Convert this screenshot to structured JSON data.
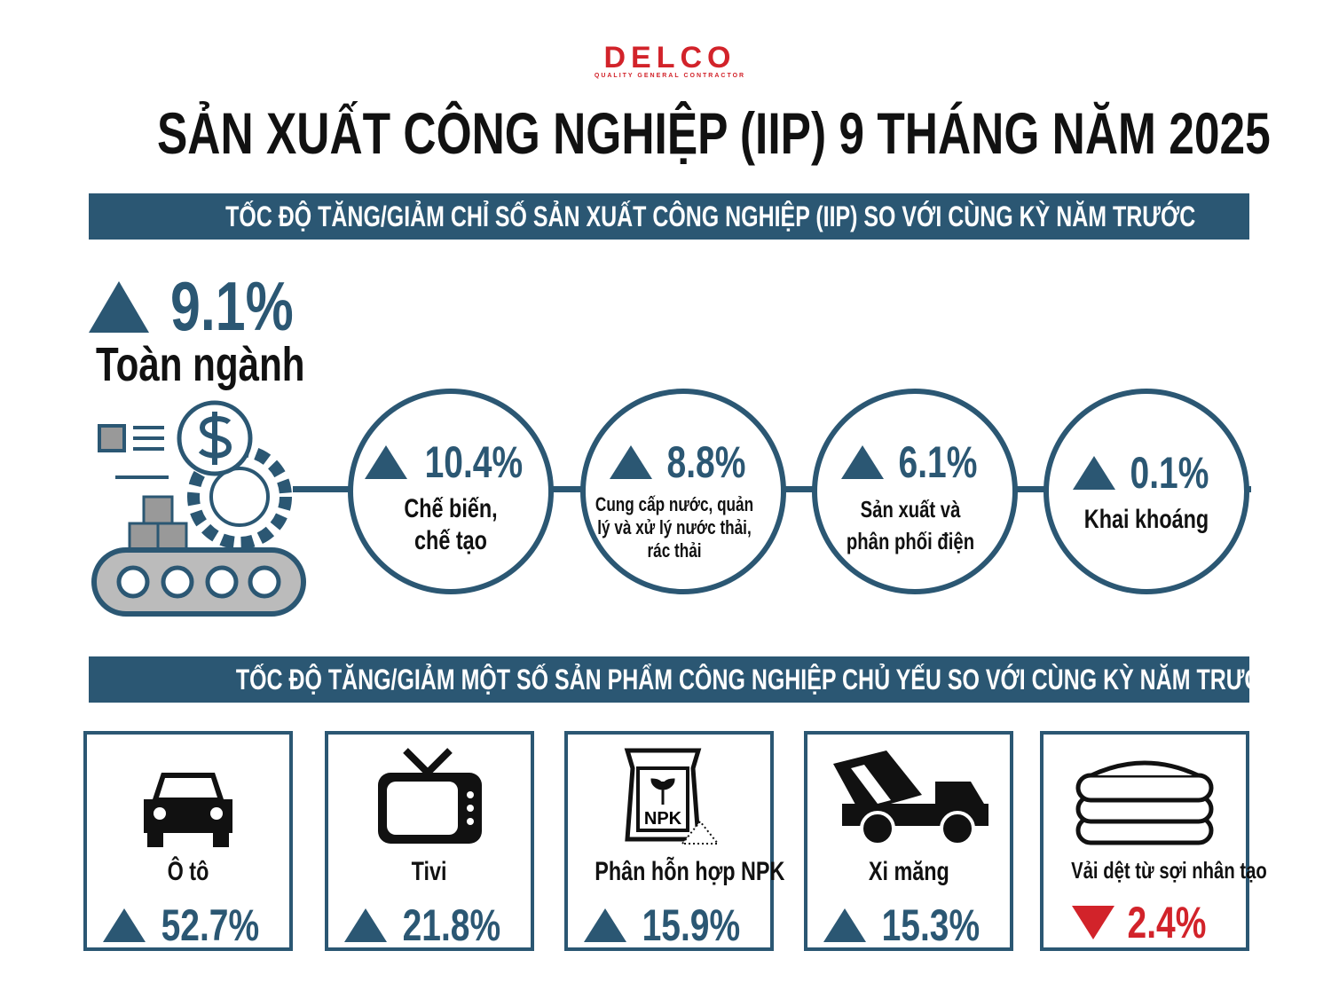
{
  "logo": {
    "brand": "DELCO",
    "tagline": "QUALITY GENERAL CONTRACTOR"
  },
  "title": "SẢN XUẤT CÔNG NGHIỆP (IIP) 9 THÁNG NĂM 2025",
  "section1": {
    "heading": "TỐC ĐỘ TĂNG/GIẢM CHỈ SỐ SẢN XUẤT CÔNG NGHIỆP (IIP) SO VỚI CÙNG KỲ NĂM TRƯỚC",
    "total": {
      "value": "9.1%",
      "label": "Toàn ngành",
      "direction": "up"
    },
    "sectors": [
      {
        "value": "10.4%",
        "label": "Chế biến, chế tạo",
        "direction": "up"
      },
      {
        "value": "8.8%",
        "label": "Cung cấp nước, quản lý và xử lý nước thải, rác thải",
        "direction": "up"
      },
      {
        "value": "6.1%",
        "label": "Sản xuất và phân phối điện",
        "direction": "up"
      },
      {
        "value": "0.1%",
        "label": "Khai khoáng",
        "direction": "up"
      }
    ]
  },
  "section2": {
    "heading": "TỐC ĐỘ TĂNG/GIẢM MỘT SỐ SẢN PHẨM CÔNG NGHIỆP CHỦ YẾU SO VỚI CÙNG KỲ NĂM TRƯỚC",
    "products": [
      {
        "name": "Ô tô",
        "value": "52.7%",
        "direction": "up",
        "icon": "car-icon"
      },
      {
        "name": "Tivi",
        "value": "21.8%",
        "direction": "up",
        "icon": "tv-icon"
      },
      {
        "name": "Phân hỗn hợp NPK",
        "value": "15.9%",
        "direction": "up",
        "icon": "fertilizer-bag-icon",
        "icon_text": "NPK"
      },
      {
        "name": "Xi măng",
        "value": "15.3%",
        "direction": "up",
        "icon": "cement-truck-icon"
      },
      {
        "name": "Vải dệt từ sợi nhân tạo",
        "value": "2.4%",
        "direction": "down",
        "icon": "fabric-stack-icon"
      }
    ]
  },
  "colors": {
    "primary": "#2b5773",
    "brand_red": "#d2232a",
    "decrease": "#d2232a"
  }
}
